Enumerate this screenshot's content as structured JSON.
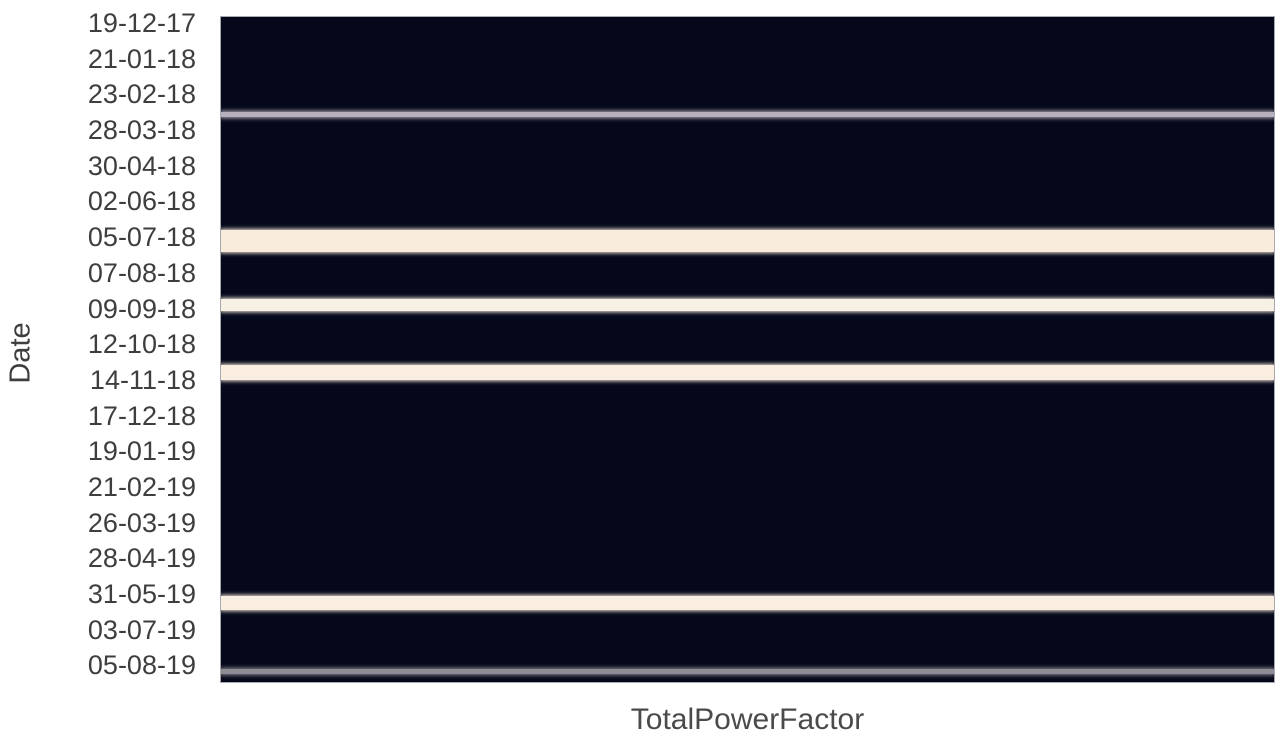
{
  "chart_data": {
    "type": "heatmap",
    "title": "",
    "xlabel": "TotalPowerFactor",
    "ylabel": "Date",
    "columns": [
      "TotalPowerFactor"
    ],
    "orientation": "single-column daily time series, dates increasing downward",
    "y_tick_labels": [
      "19-12-17",
      "21-01-18",
      "23-02-18",
      "28-03-18",
      "30-04-18",
      "02-06-18",
      "05-07-18",
      "07-08-18",
      "09-09-18",
      "12-10-18",
      "14-11-18",
      "17-12-18",
      "19-01-19",
      "21-02-19",
      "26-03-19",
      "28-04-19",
      "31-05-19",
      "03-07-19",
      "05-08-19"
    ],
    "tick_interval_days": 33,
    "grid": false,
    "legend": false,
    "colorbar": false,
    "color_low_value": "#05081a",
    "color_high_value": "#f9ecdd",
    "background_note": "most days are at the dark (low) end of the colormap",
    "light_bands": [
      {
        "approx_date": "19-03-18",
        "y_frac": 0.147,
        "thickness_frac": 0.0075,
        "color": "#b7b1bd",
        "note": "thin blended gray-lavender band"
      },
      {
        "approx_date": "13-07-18",
        "y_frac": 0.337,
        "thickness_frac": 0.033,
        "color": "#f9ecdd",
        "note": "widest cream (high) band"
      },
      {
        "approx_date": "11-09-18",
        "y_frac": 0.433,
        "thickness_frac": 0.018,
        "color": "#f6f1e4",
        "note": "ivory band"
      },
      {
        "approx_date": "12-11-18",
        "y_frac": 0.534,
        "thickness_frac": 0.0226,
        "color": "#f9eedf",
        "note": "cream band"
      },
      {
        "approx_date": "13-06-19",
        "y_frac": 0.881,
        "thickness_frac": 0.021,
        "color": "#f9eedf",
        "note": "cream band"
      },
      {
        "approx_date": "15-08-19",
        "y_frac": 0.984,
        "thickness_frac": 0.0075,
        "color": "#8f8b95",
        "note": "thin blended gray band near bottom edge"
      }
    ],
    "tick_layout": {
      "first_center_frac": 0.009,
      "step_frac": 0.05367
    }
  }
}
